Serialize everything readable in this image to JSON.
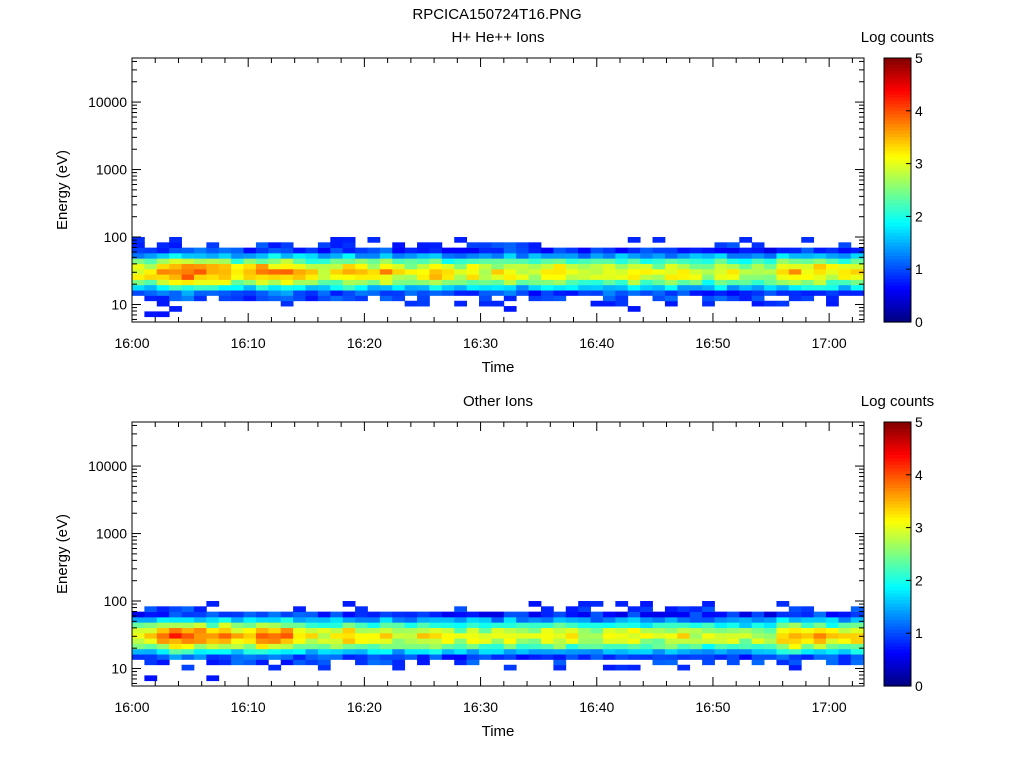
{
  "figure": {
    "title": "RPCICA150724T16.PNG"
  },
  "chart_data": [
    {
      "type": "heatmap",
      "title": "H+ He++ Ions",
      "xlabel": "Time",
      "ylabel": "Energy (eV)",
      "x_ticks": [
        "16:00",
        "16:10",
        "16:20",
        "16:30",
        "16:40",
        "16:50",
        "17:00"
      ],
      "xlim": [
        "16:00",
        "17:03"
      ],
      "y_scale": "log",
      "ylim": [
        5.5,
        45000
      ],
      "y_ticks": [
        10,
        100,
        1000,
        10000
      ],
      "y_tick_labels": [
        "10",
        "100",
        "1000",
        "10000"
      ],
      "colorbar": {
        "label": "Log counts",
        "range": [
          0,
          5
        ],
        "ticks": [
          "0",
          "1",
          "2",
          "3",
          "4",
          "5"
        ],
        "colormap": "jet"
      },
      "energy_range_eV": [
        5.5,
        100
      ],
      "peak_energy_eV": 30,
      "time_step_s": 64,
      "intensity_profile_log_counts": [
        3.2,
        3.3,
        3.6,
        3.9,
        4.0,
        3.8,
        3.6,
        3.7,
        3.4,
        3.5,
        3.7,
        3.6,
        3.8,
        3.5,
        3.2,
        3.1,
        3.3,
        3.6,
        3.4,
        3.2,
        3.5,
        3.1,
        3.0,
        3.3,
        3.4,
        3.1,
        2.9,
        3.2,
        3.0,
        3.1,
        3.3,
        3.0,
        2.9,
        3.2,
        3.3,
        3.1,
        2.8,
        3.0,
        3.2,
        3.1,
        3.3,
        3.0,
        2.9,
        3.1,
        3.2,
        3.0,
        2.9,
        3.1,
        3.0,
        2.8,
        3.0,
        2.9,
        3.4,
        3.6,
        3.3,
        3.5,
        3.2,
        3.1,
        3.4,
        3.3,
        3.5,
        3.4,
        3.2,
        3.1
      ]
    },
    {
      "type": "heatmap",
      "title": "Other Ions",
      "xlabel": "Time",
      "ylabel": "Energy (eV)",
      "x_ticks": [
        "16:00",
        "16:10",
        "16:20",
        "16:30",
        "16:40",
        "16:50",
        "17:00"
      ],
      "xlim": [
        "16:00",
        "17:03"
      ],
      "y_scale": "log",
      "ylim": [
        5.5,
        45000
      ],
      "y_ticks": [
        10,
        100,
        1000,
        10000
      ],
      "y_tick_labels": [
        "10",
        "100",
        "1000",
        "10000"
      ],
      "colorbar": {
        "label": "Log counts",
        "range": [
          0,
          5
        ],
        "ticks": [
          "0",
          "1",
          "2",
          "3",
          "4",
          "5"
        ],
        "colormap": "jet"
      },
      "energy_range_eV": [
        5.5,
        100
      ],
      "peak_energy_eV": 30,
      "time_step_s": 64,
      "intensity_profile_log_counts": [
        3.0,
        3.2,
        3.6,
        4.0,
        4.1,
        3.8,
        3.6,
        3.9,
        3.4,
        3.6,
        3.9,
        3.7,
        3.8,
        3.4,
        3.1,
        3.0,
        3.3,
        3.5,
        3.3,
        3.1,
        3.4,
        3.0,
        2.9,
        3.2,
        3.3,
        3.0,
        2.8,
        3.1,
        2.9,
        3.0,
        3.2,
        3.0,
        2.8,
        3.1,
        3.2,
        3.0,
        2.7,
        2.9,
        3.1,
        3.0,
        3.2,
        2.9,
        2.8,
        3.0,
        3.1,
        2.9,
        2.8,
        3.0,
        2.9,
        2.7,
        2.9,
        2.8,
        3.5,
        3.7,
        3.4,
        3.6,
        3.2,
        3.1,
        3.4,
        3.3,
        3.5,
        3.4,
        3.2,
        3.1
      ]
    }
  ]
}
